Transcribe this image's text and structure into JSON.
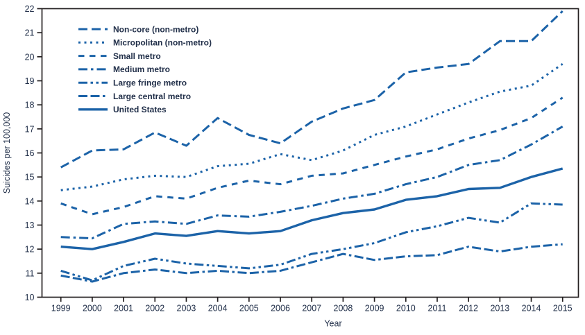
{
  "figure": {
    "ylabel": "Suicides per 100,000",
    "xlabel": "Year",
    "line_color": "#1c63a8",
    "text_color": "#22304a",
    "frame_color": "#231f20"
  },
  "chart_data": {
    "type": "line",
    "x": [
      1999,
      2000,
      2001,
      2002,
      2003,
      2004,
      2005,
      2006,
      2007,
      2008,
      2009,
      2010,
      2011,
      2012,
      2013,
      2014,
      2015
    ],
    "ylim": [
      10,
      22
    ],
    "y_tick_step": 1,
    "y_ticks": [
      10,
      11,
      12,
      13,
      14,
      15,
      16,
      17,
      18,
      19,
      20,
      21,
      22
    ],
    "xlabel": "Year",
    "ylabel": "Suicides per 100,000",
    "grid": false,
    "legend_position": "top-left-inside",
    "series": [
      {
        "name": "Non-core (non-metro)",
        "line_style": "long-dash",
        "values": [
          15.4,
          16.1,
          16.15,
          16.85,
          16.3,
          17.45,
          16.75,
          16.4,
          17.3,
          17.85,
          18.2,
          19.35,
          19.55,
          19.7,
          20.65,
          20.65,
          21.9
        ]
      },
      {
        "name": "Micropolitan (non-metro)",
        "line_style": "dotted",
        "values": [
          14.45,
          14.6,
          14.9,
          15.05,
          15.0,
          15.45,
          15.55,
          15.95,
          15.7,
          16.1,
          16.75,
          17.1,
          17.6,
          18.1,
          18.55,
          18.8,
          19.7
        ]
      },
      {
        "name": "Small metro",
        "line_style": "dash",
        "values": [
          13.9,
          13.45,
          13.75,
          14.2,
          14.1,
          14.55,
          14.85,
          14.7,
          15.05,
          15.15,
          15.5,
          15.85,
          16.15,
          16.6,
          16.95,
          17.45,
          18.3
        ]
      },
      {
        "name": "Medium metro",
        "line_style": "dash-dot",
        "values": [
          12.5,
          12.45,
          13.05,
          13.15,
          13.05,
          13.4,
          13.35,
          13.55,
          13.8,
          14.1,
          14.3,
          14.7,
          15.0,
          15.5,
          15.7,
          16.35,
          17.1
        ]
      },
      {
        "name": "Large fringe metro",
        "line_style": "dash-dot-dot",
        "values": [
          11.1,
          10.7,
          11.3,
          11.6,
          11.4,
          11.3,
          11.2,
          11.35,
          11.8,
          12.0,
          12.25,
          12.7,
          12.95,
          13.3,
          13.1,
          13.9,
          13.85
        ]
      },
      {
        "name": "Large central metro",
        "line_style": "dash-dash-dot",
        "values": [
          10.9,
          10.65,
          11.0,
          11.15,
          11.0,
          11.1,
          11.0,
          11.1,
          11.45,
          11.8,
          11.55,
          11.7,
          11.75,
          12.1,
          11.9,
          12.1,
          12.2
        ]
      },
      {
        "name": "United States",
        "line_style": "solid",
        "values": [
          12.1,
          12.0,
          12.3,
          12.65,
          12.55,
          12.75,
          12.65,
          12.75,
          13.2,
          13.5,
          13.65,
          14.05,
          14.2,
          14.5,
          14.55,
          15.0,
          15.35
        ]
      }
    ]
  }
}
